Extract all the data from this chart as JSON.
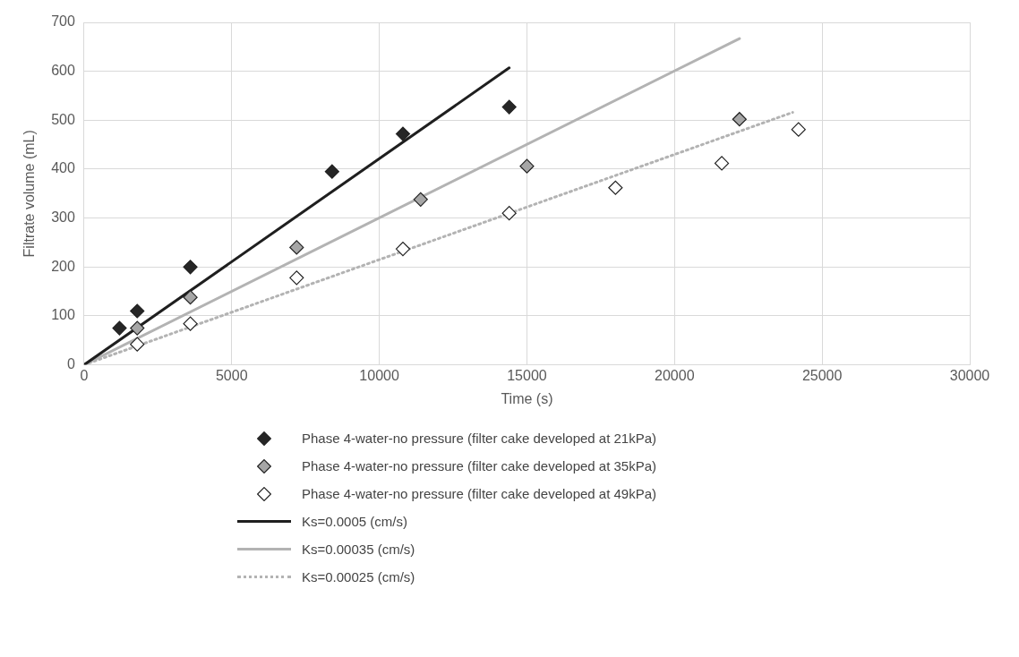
{
  "chart_data": {
    "type": "scatter",
    "xlabel": "Time (s)",
    "ylabel": "Filtrate volume (mL)",
    "xlim": [
      0,
      30000
    ],
    "xticks": [
      0,
      5000,
      10000,
      15000,
      20000,
      25000,
      30000
    ],
    "ylim": [
      0,
      700
    ],
    "yticks": [
      0,
      100,
      200,
      300,
      400,
      500,
      600,
      700
    ],
    "grid": true,
    "legend": "bottom",
    "series": [
      {
        "name": "Phase 4-water-no pressure (filter cake developed at 21kPa)",
        "marker": "diamond",
        "color": "#262626",
        "x": [
          1200,
          1800,
          3600,
          8400,
          10800,
          14400
        ],
        "values": [
          75,
          110,
          200,
          395,
          472,
          527
        ]
      },
      {
        "name": "Phase 4-water-no pressure (filter cake developed at 35kPa)",
        "marker": "diamond",
        "color": "#a6a6a6",
        "x": [
          1800,
          3600,
          7200,
          11400,
          15000,
          22200
        ],
        "values": [
          75,
          138,
          240,
          338,
          406,
          502
        ]
      },
      {
        "name": "Phase 4-water-no pressure (filter cake developed at 49kPa)",
        "marker": "diamond",
        "color": "#ffffff",
        "x": [
          1800,
          3600,
          7200,
          10800,
          14400,
          18000,
          21600,
          24200
        ],
        "values": [
          42,
          84,
          178,
          237,
          310,
          362,
          412,
          481
        ]
      },
      {
        "name": "Ks=0.0005 (cm/s)",
        "type": "line",
        "marker": "none",
        "color": "#1f1f1f",
        "line_style": "solid",
        "x": [
          0,
          14400
        ],
        "values": [
          0,
          607
        ]
      },
      {
        "name": "Ks=0.00035 (cm/s)",
        "type": "line",
        "marker": "none",
        "color": "#b3b3b3",
        "line_style": "solid",
        "x": [
          0,
          22200
        ],
        "values": [
          0,
          667
        ]
      },
      {
        "name": "Ks=0.00025 (cm/s)",
        "type": "line",
        "marker": "none",
        "color": "#b3b3b3",
        "line_style": "dotted",
        "x": [
          0,
          24000
        ],
        "values": [
          0,
          516
        ]
      }
    ]
  }
}
